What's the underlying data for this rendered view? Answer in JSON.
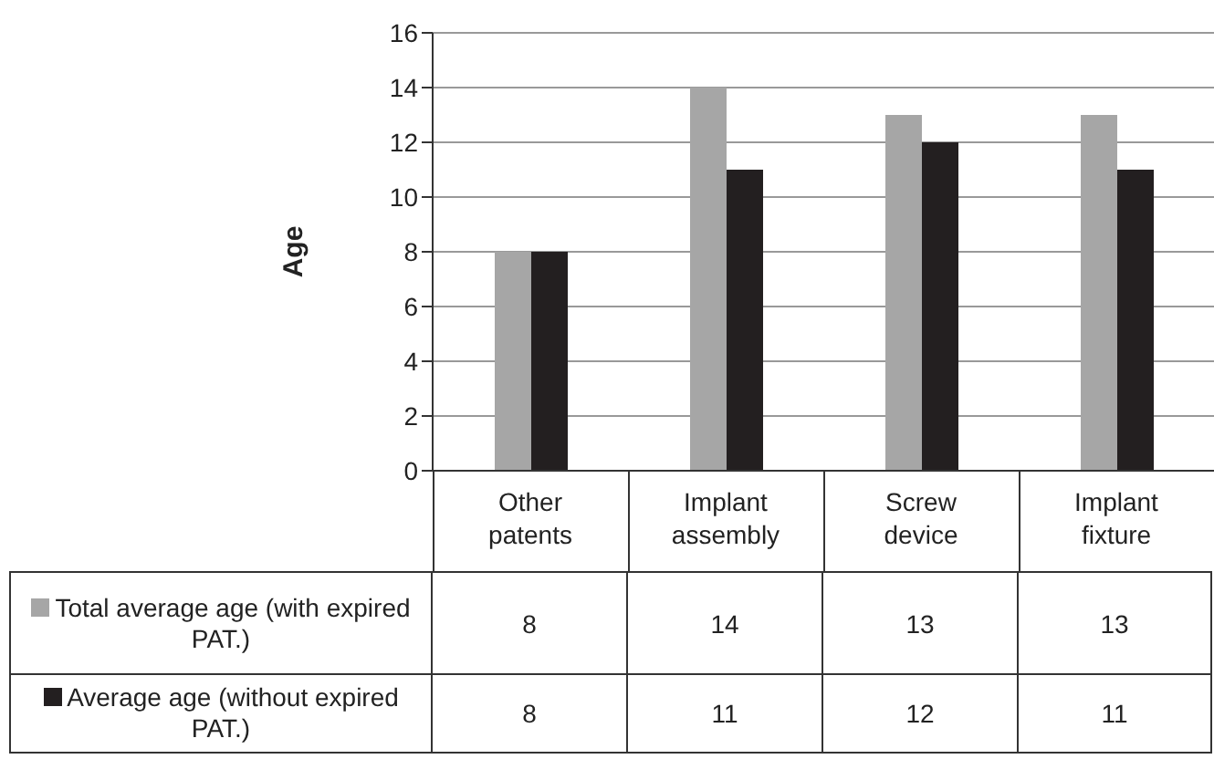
{
  "chart_data": {
    "type": "bar",
    "ylabel": "Age",
    "categories": [
      "Other patents",
      "Implant assembly",
      "Screw device",
      "Implant fixture"
    ],
    "series": [
      {
        "name": "Total average age (with expired PAT.)",
        "color": "#a6a6a6",
        "values": [
          8,
          14,
          13,
          13
        ]
      },
      {
        "name": "Average age (without expired PAT.)",
        "color": "#231f20",
        "values": [
          8,
          11,
          12,
          11
        ]
      }
    ],
    "ylim": [
      0,
      16
    ],
    "yticks": [
      0,
      2,
      4,
      6,
      8,
      10,
      12,
      14,
      16
    ],
    "grid": "y",
    "legend": "bottom left",
    "data_labels": true
  }
}
